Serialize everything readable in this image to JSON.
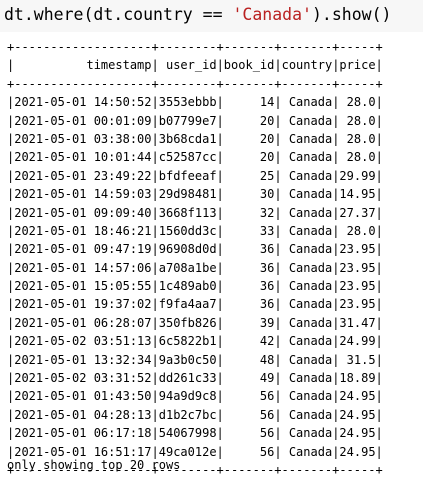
{
  "code": {
    "prefix": "dt.where(dt.country == ",
    "string_arg": "'Canada'",
    "suffix": ").show()"
  },
  "table": {
    "columns": [
      "timestamp",
      "user_id",
      "book_id",
      "country",
      "price"
    ],
    "rows": [
      [
        "2021-05-01 14:50:52",
        "3553ebbb",
        "14",
        "Canada",
        "28.0"
      ],
      [
        "2021-05-01 00:01:09",
        "b07799e7",
        "20",
        "Canada",
        "28.0"
      ],
      [
        "2021-05-01 03:38:00",
        "3b68cda1",
        "20",
        "Canada",
        "28.0"
      ],
      [
        "2021-05-01 10:01:44",
        "c52587cc",
        "20",
        "Canada",
        "28.0"
      ],
      [
        "2021-05-01 23:49:22",
        "bfdfeeaf",
        "25",
        "Canada",
        "29.99"
      ],
      [
        "2021-05-01 14:59:03",
        "29d98481",
        "30",
        "Canada",
        "14.95"
      ],
      [
        "2021-05-01 09:09:40",
        "3668f113",
        "32",
        "Canada",
        "27.37"
      ],
      [
        "2021-05-01 18:46:21",
        "1560dd3c",
        "33",
        "Canada",
        "28.0"
      ],
      [
        "2021-05-01 09:47:19",
        "96908d0d",
        "36",
        "Canada",
        "23.95"
      ],
      [
        "2021-05-01 14:57:06",
        "a708a1be",
        "36",
        "Canada",
        "23.95"
      ],
      [
        "2021-05-01 15:05:55",
        "1c489ab0",
        "36",
        "Canada",
        "23.95"
      ],
      [
        "2021-05-01 19:37:02",
        "f9fa4aa7",
        "36",
        "Canada",
        "23.95"
      ],
      [
        "2021-05-01 06:28:07",
        "350fb826",
        "39",
        "Canada",
        "31.47"
      ],
      [
        "2021-05-02 03:51:13",
        "6c5822b1",
        "42",
        "Canada",
        "24.99"
      ],
      [
        "2021-05-01 13:32:34",
        "9a3b0c50",
        "48",
        "Canada",
        "31.5"
      ],
      [
        "2021-05-02 03:31:52",
        "dd261c33",
        "49",
        "Canada",
        "18.89"
      ],
      [
        "2021-05-01 01:43:50",
        "94a9d9c8",
        "56",
        "Canada",
        "24.95"
      ],
      [
        "2021-05-01 04:28:13",
        "d1b2c7bc",
        "56",
        "Canada",
        "24.95"
      ],
      [
        "2021-05-01 06:17:18",
        "54067998",
        "56",
        "Canada",
        "24.95"
      ],
      [
        "2021-05-01 16:51:17",
        "49ca012e",
        "56",
        "Canada",
        "24.95"
      ]
    ]
  },
  "footer": "only showing top 20 rows"
}
